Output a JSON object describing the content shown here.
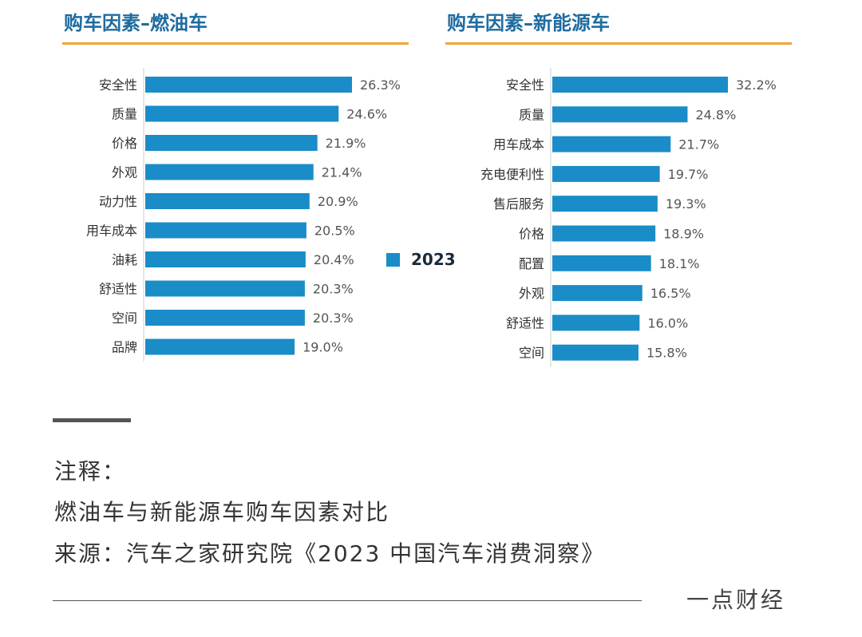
{
  "chart_data": [
    {
      "type": "bar",
      "orientation": "horizontal",
      "title": "购车因素–燃油车",
      "categories": [
        "安全性",
        "质量",
        "价格",
        "外观",
        "动力性",
        "用车成本",
        "油耗",
        "舒适性",
        "空间",
        "品牌"
      ],
      "series": [
        {
          "name": "2023",
          "values": [
            26.3,
            24.6,
            21.9,
            21.4,
            20.9,
            20.5,
            20.4,
            20.3,
            20.3,
            19.0
          ]
        }
      ],
      "value_suffix": "%",
      "xlim": [
        0,
        35
      ],
      "grid": false,
      "bar_color": "#1a8cc8"
    },
    {
      "type": "bar",
      "orientation": "horizontal",
      "title": "购车因素–新能源车",
      "categories": [
        "安全性",
        "质量",
        "用车成本",
        "充电便利性",
        "售后服务",
        "价格",
        "配置",
        "外观",
        "舒适性",
        "空间"
      ],
      "series": [
        {
          "name": "2023",
          "values": [
            32.2,
            24.8,
            21.7,
            19.7,
            19.3,
            18.9,
            18.1,
            16.5,
            16.0,
            15.8
          ]
        }
      ],
      "value_suffix": "%",
      "xlim": [
        0,
        35
      ],
      "grid": false,
      "bar_color": "#1a8cc8"
    }
  ],
  "legend": {
    "label": "2023",
    "color": "#1a8cc8"
  },
  "notes": {
    "label": "注释：",
    "line1": "燃油车与新能源车购车因素对比",
    "line2": "来源：汽车之家研究院《2023 中国汽车消费洞察》"
  },
  "brand": "一点财经"
}
